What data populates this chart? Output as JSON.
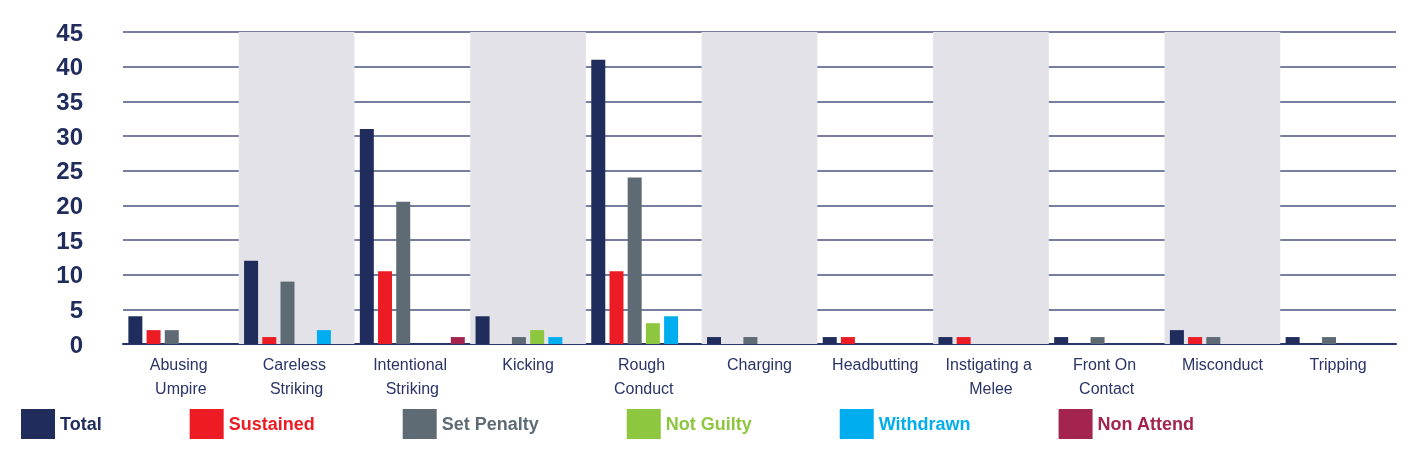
{
  "chart_data": {
    "type": "bar",
    "categories": [
      "Abusing Umpire",
      "Careless Striking",
      "Intentional Striking",
      "Kicking",
      "Rough Conduct",
      "Charging",
      "Headbutting",
      "Instigating a Melee",
      "Front On Contact",
      "Misconduct",
      "Tripping"
    ],
    "series": [
      {
        "name": "Total",
        "color": "#1f2c5c",
        "values": [
          4,
          12,
          31,
          4,
          41,
          1,
          1,
          1,
          1,
          2,
          1
        ]
      },
      {
        "name": "Sustained",
        "color": "#ed1c24",
        "values": [
          2,
          1,
          10.5,
          0,
          10.5,
          0,
          1,
          1,
          0,
          1,
          0
        ]
      },
      {
        "name": "Set Penalty",
        "color": "#5e6b74",
        "values": [
          2,
          9,
          20.5,
          1,
          24,
          1,
          0,
          0,
          1,
          1,
          1
        ]
      },
      {
        "name": "Not Guilty",
        "color": "#8dc63f",
        "values": [
          0,
          0,
          0,
          2,
          3,
          0,
          0,
          0,
          0,
          0,
          0
        ]
      },
      {
        "name": "Withdrawn",
        "color": "#00aeef",
        "values": [
          0,
          2,
          0,
          1,
          4,
          0,
          0,
          0,
          0,
          0,
          0
        ]
      },
      {
        "name": "Non Attend",
        "color": "#a3244f",
        "values": [
          0,
          0,
          1,
          0,
          0,
          0,
          0,
          0,
          0,
          0,
          0
        ]
      }
    ],
    "ylim": [
      0,
      45
    ],
    "yticks": [
      0,
      5,
      10,
      15,
      20,
      25,
      30,
      35,
      40,
      45
    ],
    "grid": "y",
    "legend": "bottom",
    "bands": [
      {
        "axis": "x",
        "from": "Careless Striking",
        "to": "Careless Striking",
        "color": "#e3e2e8"
      },
      {
        "axis": "x",
        "from": "Kicking",
        "to": "Kicking",
        "color": "#e3e2e8"
      },
      {
        "axis": "x",
        "from": "Charging",
        "to": "Charging",
        "color": "#e3e2e8"
      },
      {
        "axis": "x",
        "from": "Instigating a Melee",
        "to": "Instigating a Melee",
        "color": "#e3e2e8"
      },
      {
        "axis": "x",
        "from": "Misconduct",
        "to": "Misconduct",
        "color": "#e3e2e8"
      }
    ]
  }
}
